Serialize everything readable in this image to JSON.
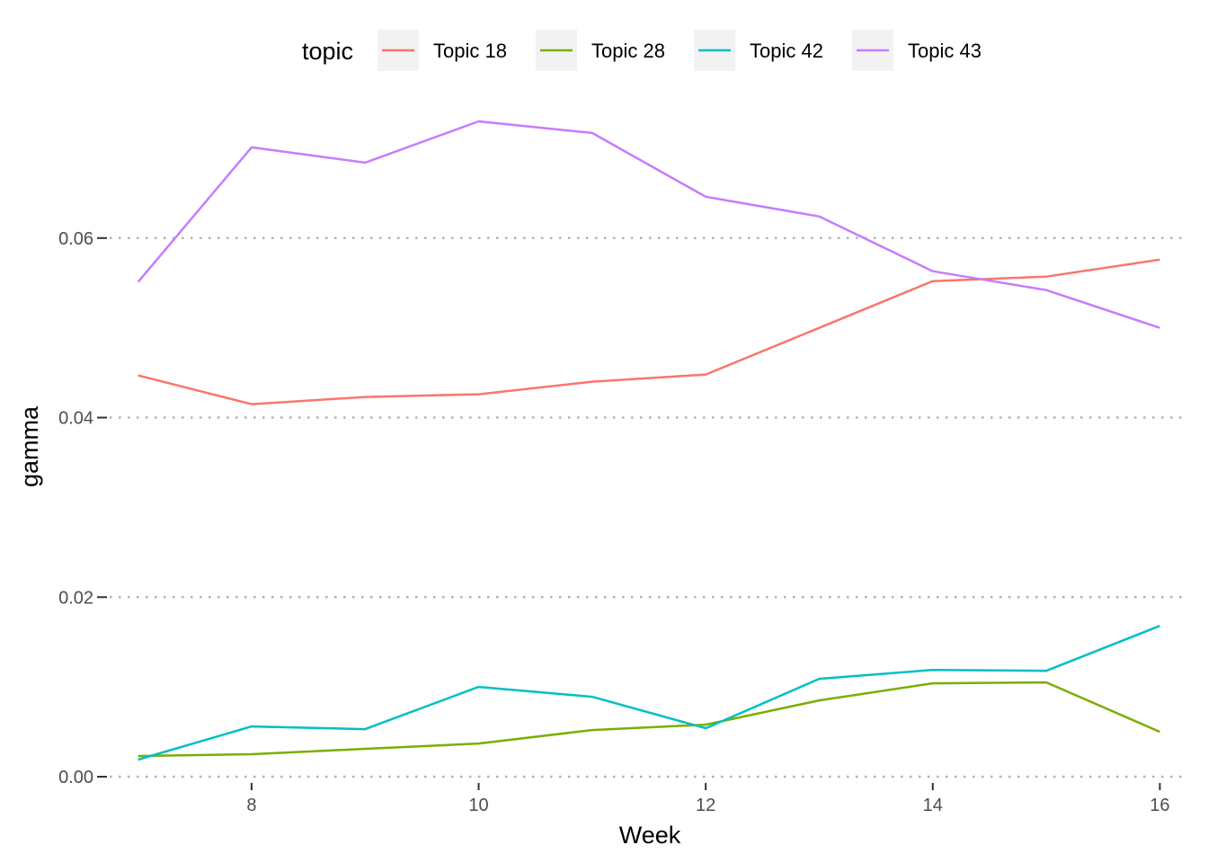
{
  "chart_data": {
    "type": "line",
    "xlabel": "Week",
    "ylabel": "gamma",
    "legend_title": "topic",
    "legend_position": "top",
    "xlim": [
      6.75,
      16.25
    ],
    "ylim": [
      -0.0004,
      0.0755
    ],
    "x_ticks": [
      8,
      10,
      12,
      14,
      16
    ],
    "y_ticks": [
      0.0,
      0.02,
      0.04,
      0.06
    ],
    "y_tick_labels": [
      "0.00",
      "0.02",
      "0.04",
      "0.06"
    ],
    "x_tick_labels": [
      "8",
      "10",
      "12",
      "14",
      "16"
    ],
    "grid": "horizontal major, dotted",
    "x": [
      7,
      8,
      9,
      10,
      11,
      12,
      13,
      14,
      15,
      16
    ],
    "series": [
      {
        "name": "Topic 18",
        "color": "#F8766D",
        "values": [
          0.0447,
          0.0415,
          0.0423,
          0.0426,
          0.044,
          0.0448,
          0.05,
          0.0552,
          0.0557,
          0.0576
        ]
      },
      {
        "name": "Topic 28",
        "color": "#7CAE00",
        "values": [
          0.0023,
          0.0025,
          0.0031,
          0.0037,
          0.0052,
          0.0058,
          0.0085,
          0.0104,
          0.0105,
          0.005
        ]
      },
      {
        "name": "Topic 42",
        "color": "#00BFC4",
        "values": [
          0.0019,
          0.0056,
          0.0053,
          0.01,
          0.0089,
          0.0054,
          0.0109,
          0.0119,
          0.0118,
          0.0168
        ]
      },
      {
        "name": "Topic 43",
        "color": "#C77CFF",
        "values": [
          0.0551,
          0.0701,
          0.0684,
          0.073,
          0.0717,
          0.0646,
          0.0624,
          0.0563,
          0.0542,
          0.05
        ]
      }
    ]
  }
}
